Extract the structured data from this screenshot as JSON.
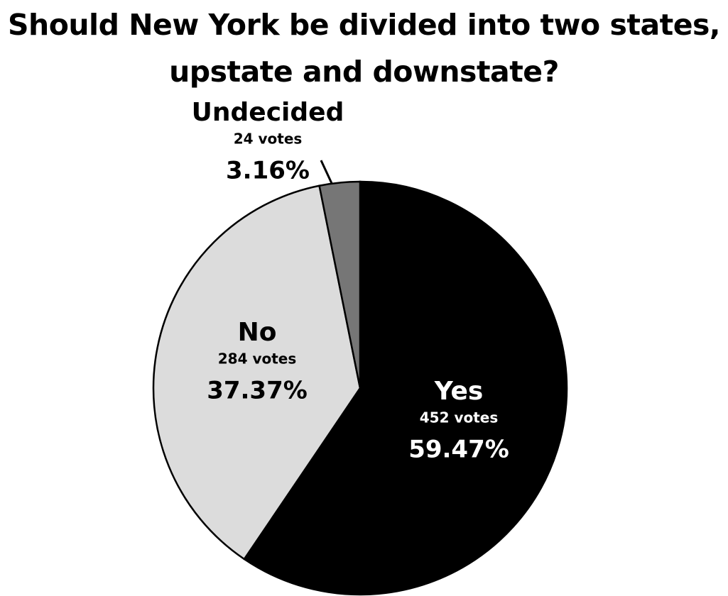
{
  "chart_data": {
    "type": "pie",
    "title": "Should New York be divided into two states, upstate and downstate?",
    "categories": [
      "Yes",
      "No",
      "Undecided"
    ],
    "vote_labels": [
      "452 votes",
      "284 votes",
      "24 votes"
    ],
    "values": [
      59.47,
      37.37,
      3.16
    ],
    "value_labels": [
      "59.47%",
      "37.37%",
      "3.16%"
    ],
    "colors": [
      "#000000",
      "#dcdcdc",
      "#767676"
    ]
  }
}
